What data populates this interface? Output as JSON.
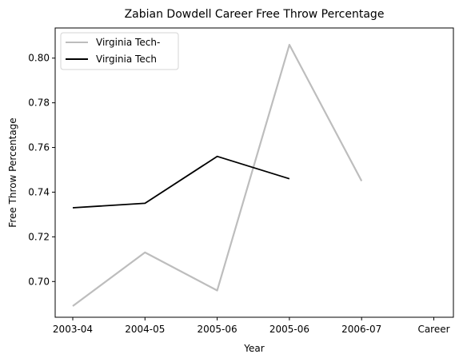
{
  "chart_data": {
    "type": "line",
    "title": "Zabian Dowdell Career Free Throw Percentage",
    "xlabel": "Year",
    "ylabel": "Free Throw Percentage",
    "x_ticks": [
      "2003-04",
      "2004-05",
      "2005-06",
      "2005-06",
      "2006-07",
      "Career"
    ],
    "ylim": [
      0.684,
      0.8135
    ],
    "y_ticks": [
      "0.70",
      "0.72",
      "0.74",
      "0.76",
      "0.78",
      "0.80"
    ],
    "grid": false,
    "legend_position": "top-left",
    "series": [
      {
        "name": "Virginia Tech-",
        "color": "#bdbdbd",
        "points": [
          {
            "x": 0,
            "y": 0.689
          },
          {
            "x": 1,
            "y": 0.713
          },
          {
            "x": 2,
            "y": 0.696
          },
          {
            "x": 3,
            "y": 0.806
          },
          {
            "x": 4,
            "y": 0.745
          }
        ]
      },
      {
        "name": "Virginia Tech",
        "color": "#000000",
        "points": [
          {
            "x": 0,
            "y": 0.733
          },
          {
            "x": 1,
            "y": 0.735
          },
          {
            "x": 2,
            "y": 0.756
          },
          {
            "x": 3,
            "y": 0.746
          }
        ]
      }
    ]
  }
}
